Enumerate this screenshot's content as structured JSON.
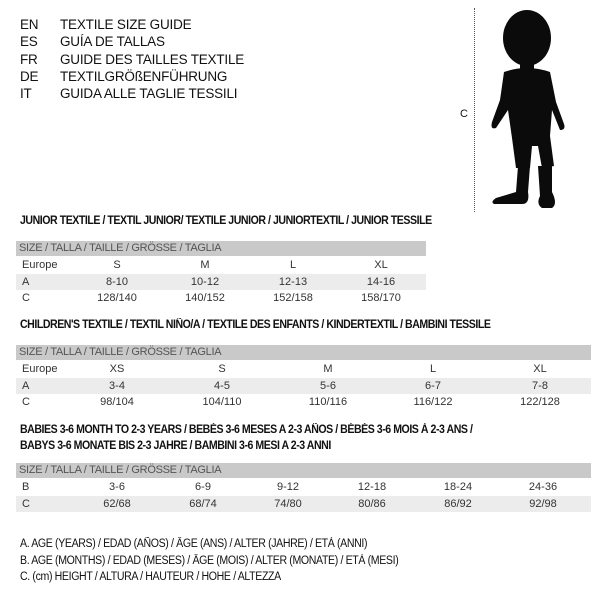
{
  "languages": [
    {
      "code": "EN",
      "text": "TEXTILE SIZE GUIDE"
    },
    {
      "code": "ES",
      "text": "GUÍA DE TALLAS"
    },
    {
      "code": "FR",
      "text": "GUIDE DES TAILLES TEXTILE"
    },
    {
      "code": "DE",
      "text": "TEXTILGRÖßENFÜHRUNG"
    },
    {
      "code": "IT",
      "text": "GUIDA ALLE TAGLIE TESSILI"
    }
  ],
  "figure": {
    "label": "C",
    "icon": "child-silhouette"
  },
  "size_header": "SIZE / TALLA / TAILLE / GRÖSSE / TAGLIA",
  "junior": {
    "title": "JUNIOR TEXTILE / TEXTIL JUNIOR/ TEXTILE JUNIOR / JUNIORTEXTIL / JUNIOR TESSILE",
    "rows": [
      {
        "label": "Europe",
        "values": [
          "S",
          "M",
          "L",
          "XL"
        ]
      },
      {
        "label": "A",
        "values": [
          "8-10",
          "10-12",
          "12-13",
          "14-16"
        ]
      },
      {
        "label": "C",
        "values": [
          "128/140",
          "140/152",
          "152/158",
          "158/170"
        ]
      }
    ]
  },
  "children": {
    "title": "CHILDREN'S TEXTILE / TEXTIL NIÑO/A / TEXTILE DES ENFANTS / KINDERTEXTIL / BAMBINI TESSILE",
    "rows": [
      {
        "label": "Europe",
        "values": [
          "XS",
          "S",
          "M",
          "L",
          "XL"
        ]
      },
      {
        "label": "A",
        "values": [
          "3-4",
          "4-5",
          "5-6",
          "6-7",
          "7-8"
        ]
      },
      {
        "label": "C",
        "values": [
          "98/104",
          "104/110",
          "110/116",
          "116/122",
          "122/128"
        ]
      }
    ]
  },
  "babies": {
    "title_line1": "BABIES 3-6 MONTH TO 2-3 YEARS / BEBÉS 3-6 MESES A 2-3 AÑOS / BÉBÉS 3-6 MOIS À 2-3 ANS /",
    "title_line2": "BABYS 3-6 MONATE BIS 2-3 JAHRE / BAMBINI 3-6 MESI A 2-3 ANNI",
    "rows": [
      {
        "label": "B",
        "values": [
          "3-6",
          "6-9",
          "9-12",
          "12-18",
          "18-24",
          "24-36"
        ]
      },
      {
        "label": "C",
        "values": [
          "62/68",
          "68/74",
          "74/80",
          "80/86",
          "86/92",
          "92/98"
        ]
      }
    ]
  },
  "legend": [
    "A. AGE (YEARS) / EDAD (AÑOS) / ÂGE (ANS) / ALTER (JAHRE) / ETÀ (ANNI)",
    "B. AGE (MONTHS) / EDAD (MESES) / ÂGE (MOIS) / ALTER (MONATE) / ETÀ (MESI)",
    "C. (cm) HEIGHT / ALTURA / HAUTEUR / HÖHE / ALTEZZA"
  ]
}
